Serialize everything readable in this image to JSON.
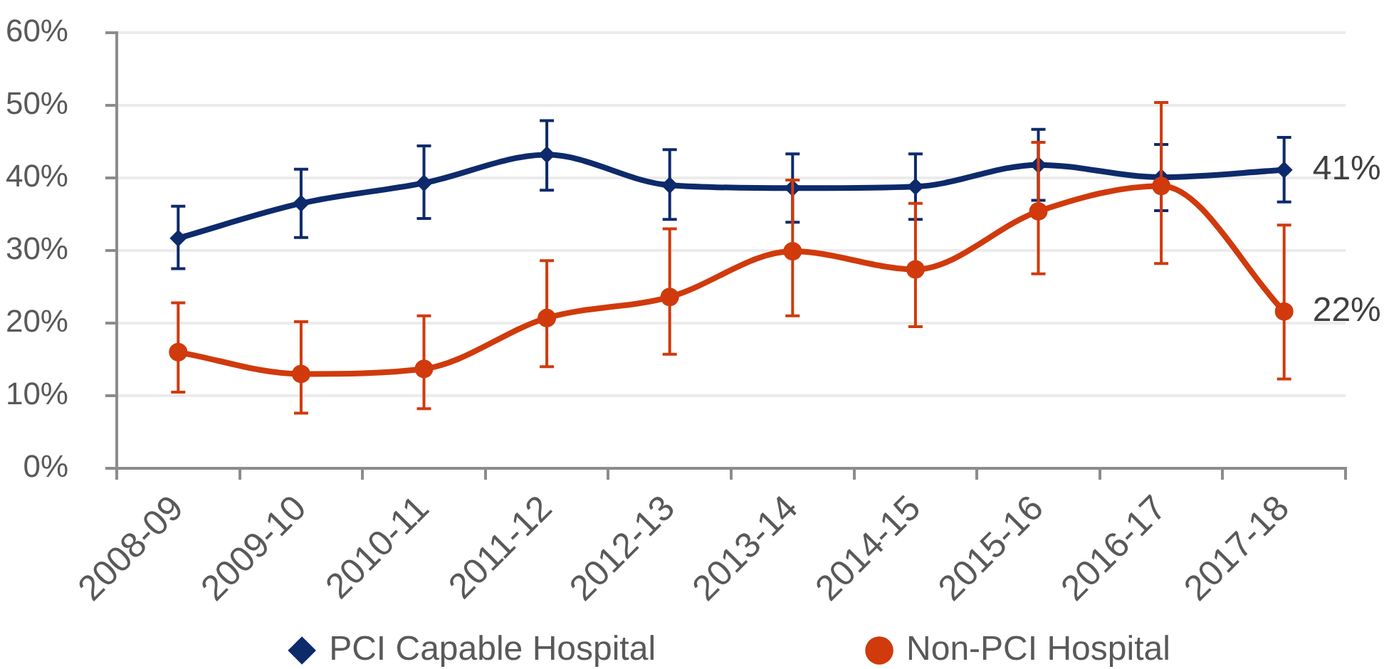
{
  "chart_data": {
    "type": "line",
    "categories": [
      "2008-09",
      "2009-10",
      "2010-11",
      "2011-12",
      "2012-13",
      "2013-14",
      "2014-15",
      "2015-16",
      "2016-17",
      "2017-18"
    ],
    "series": [
      {
        "name": "PCI Capable Hospital",
        "color": "#0d2a6b",
        "marker": "diamond",
        "values": [
          31.7,
          36.5,
          39.3,
          43.2,
          39.0,
          38.6,
          38.8,
          41.8,
          40.1,
          41.1
        ],
        "errors": [
          [
            27.5,
            36.1
          ],
          [
            31.8,
            41.2
          ],
          [
            34.4,
            44.4
          ],
          [
            38.3,
            47.9
          ],
          [
            34.3,
            43.9
          ],
          [
            33.9,
            43.3
          ],
          [
            34.3,
            43.3
          ],
          [
            36.9,
            46.7
          ],
          [
            35.5,
            44.6
          ],
          [
            36.7,
            45.6
          ]
        ],
        "value_labels": [
          null,
          null,
          null,
          null,
          null,
          null,
          null,
          null,
          null,
          "41%"
        ]
      },
      {
        "name": "Non-PCI Hospital",
        "color": "#d03a0c",
        "marker": "circle",
        "values": [
          16.0,
          13.0,
          13.7,
          20.7,
          23.6,
          29.9,
          27.4,
          35.4,
          38.9,
          21.6
        ],
        "errors": [
          [
            10.5,
            22.8
          ],
          [
            7.6,
            20.2
          ],
          [
            8.2,
            21.0
          ],
          [
            14.0,
            28.6
          ],
          [
            15.7,
            33.0
          ],
          [
            21.0,
            39.7
          ],
          [
            19.5,
            36.5
          ],
          [
            26.8,
            44.9
          ],
          [
            28.2,
            50.4
          ],
          [
            12.3,
            33.5
          ]
        ],
        "value_labels": [
          null,
          null,
          null,
          null,
          null,
          null,
          null,
          null,
          null,
          "22%"
        ]
      }
    ],
    "ylim": [
      0,
      60
    ],
    "yticks": [
      {
        "value": 0,
        "label": "0%"
      },
      {
        "value": 10,
        "label": "10%"
      },
      {
        "value": 20,
        "label": "20%"
      },
      {
        "value": 30,
        "label": "30%"
      },
      {
        "value": 40,
        "label": "40%"
      },
      {
        "value": 50,
        "label": "50%"
      },
      {
        "value": 60,
        "label": "60%"
      }
    ],
    "grid": "y",
    "legend": "bottom"
  }
}
